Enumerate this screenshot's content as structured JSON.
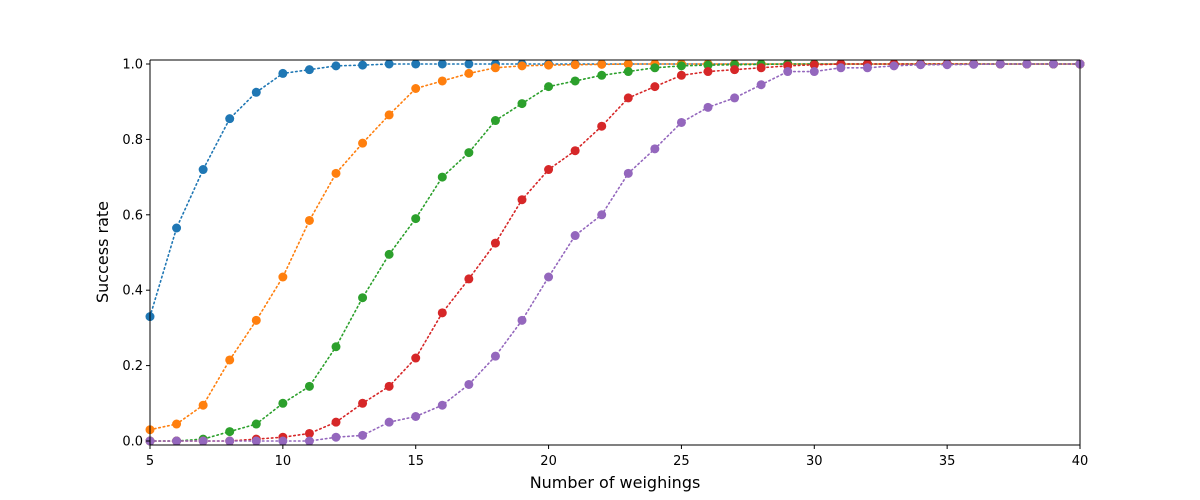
{
  "chart_data": {
    "type": "line",
    "title": "",
    "xlabel": "Number of weighings",
    "ylabel": "Success rate",
    "xlim": [
      5,
      40
    ],
    "ylim": [
      0,
      1.0
    ],
    "xticks": [
      5,
      10,
      15,
      20,
      25,
      30,
      35,
      40
    ],
    "xtick_labels": [
      "5",
      "10",
      "15",
      "20",
      "25",
      "30",
      "35",
      "40"
    ],
    "yticks": [
      0.0,
      0.2,
      0.4,
      0.6,
      0.8,
      1.0
    ],
    "ytick_labels": [
      "0.0",
      "0.2",
      "0.4",
      "0.6",
      "0.8",
      "1.0"
    ],
    "grid": false,
    "legend": null,
    "line_style": "dotted",
    "marker": "circle",
    "x": [
      5,
      6,
      7,
      8,
      9,
      10,
      11,
      12,
      13,
      14,
      15,
      16,
      17,
      18,
      19,
      20,
      21,
      22,
      23,
      24,
      25,
      26,
      27,
      28,
      29,
      30,
      31,
      32,
      33,
      34,
      35,
      36,
      37,
      38,
      39,
      40
    ],
    "series": [
      {
        "color": "#1f77b4",
        "values": [
          0.33,
          0.565,
          0.72,
          0.855,
          0.925,
          0.975,
          0.985,
          0.995,
          0.997,
          1.0,
          1.0,
          1.0,
          1.0,
          1.0,
          1.0,
          1.0,
          1.0,
          1.0,
          1.0,
          1.0,
          1.0,
          1.0,
          1.0,
          1.0,
          1.0,
          1.0,
          1.0,
          1.0,
          1.0,
          1.0,
          1.0,
          1.0,
          1.0,
          1.0,
          1.0,
          1.0
        ]
      },
      {
        "color": "#ff7f0e",
        "values": [
          0.03,
          0.045,
          0.095,
          0.215,
          0.32,
          0.435,
          0.585,
          0.71,
          0.79,
          0.865,
          0.935,
          0.955,
          0.975,
          0.99,
          0.995,
          0.997,
          0.998,
          0.999,
          1.0,
          1.0,
          1.0,
          1.0,
          1.0,
          1.0,
          1.0,
          1.0,
          1.0,
          1.0,
          1.0,
          1.0,
          1.0,
          1.0,
          1.0,
          1.0,
          1.0,
          1.0
        ]
      },
      {
        "color": "#2ca02c",
        "values": [
          0.0,
          0.0,
          0.005,
          0.025,
          0.045,
          0.1,
          0.145,
          0.25,
          0.38,
          0.495,
          0.59,
          0.7,
          0.765,
          0.85,
          0.895,
          0.94,
          0.955,
          0.97,
          0.98,
          0.99,
          0.995,
          0.997,
          0.998,
          0.999,
          1.0,
          1.0,
          1.0,
          1.0,
          1.0,
          1.0,
          1.0,
          1.0,
          1.0,
          1.0,
          1.0,
          1.0
        ]
      },
      {
        "color": "#d62728",
        "values": [
          0.0,
          0.0,
          0.0,
          0.0,
          0.005,
          0.01,
          0.02,
          0.05,
          0.1,
          0.145,
          0.22,
          0.34,
          0.43,
          0.525,
          0.64,
          0.72,
          0.77,
          0.835,
          0.91,
          0.94,
          0.97,
          0.98,
          0.985,
          0.99,
          0.995,
          0.998,
          1.0,
          1.0,
          1.0,
          1.0,
          1.0,
          1.0,
          1.0,
          1.0,
          1.0,
          1.0
        ]
      },
      {
        "color": "#9467bd",
        "values": [
          0.0,
          0.0,
          0.0,
          0.0,
          0.0,
          0.0,
          0.0,
          0.01,
          0.015,
          0.05,
          0.065,
          0.095,
          0.15,
          0.225,
          0.32,
          0.435,
          0.545,
          0.6,
          0.71,
          0.775,
          0.845,
          0.885,
          0.91,
          0.945,
          0.98,
          0.98,
          0.99,
          0.99,
          0.995,
          0.998,
          0.998,
          0.999,
          1.0,
          1.0,
          1.0,
          1.0
        ]
      }
    ]
  }
}
